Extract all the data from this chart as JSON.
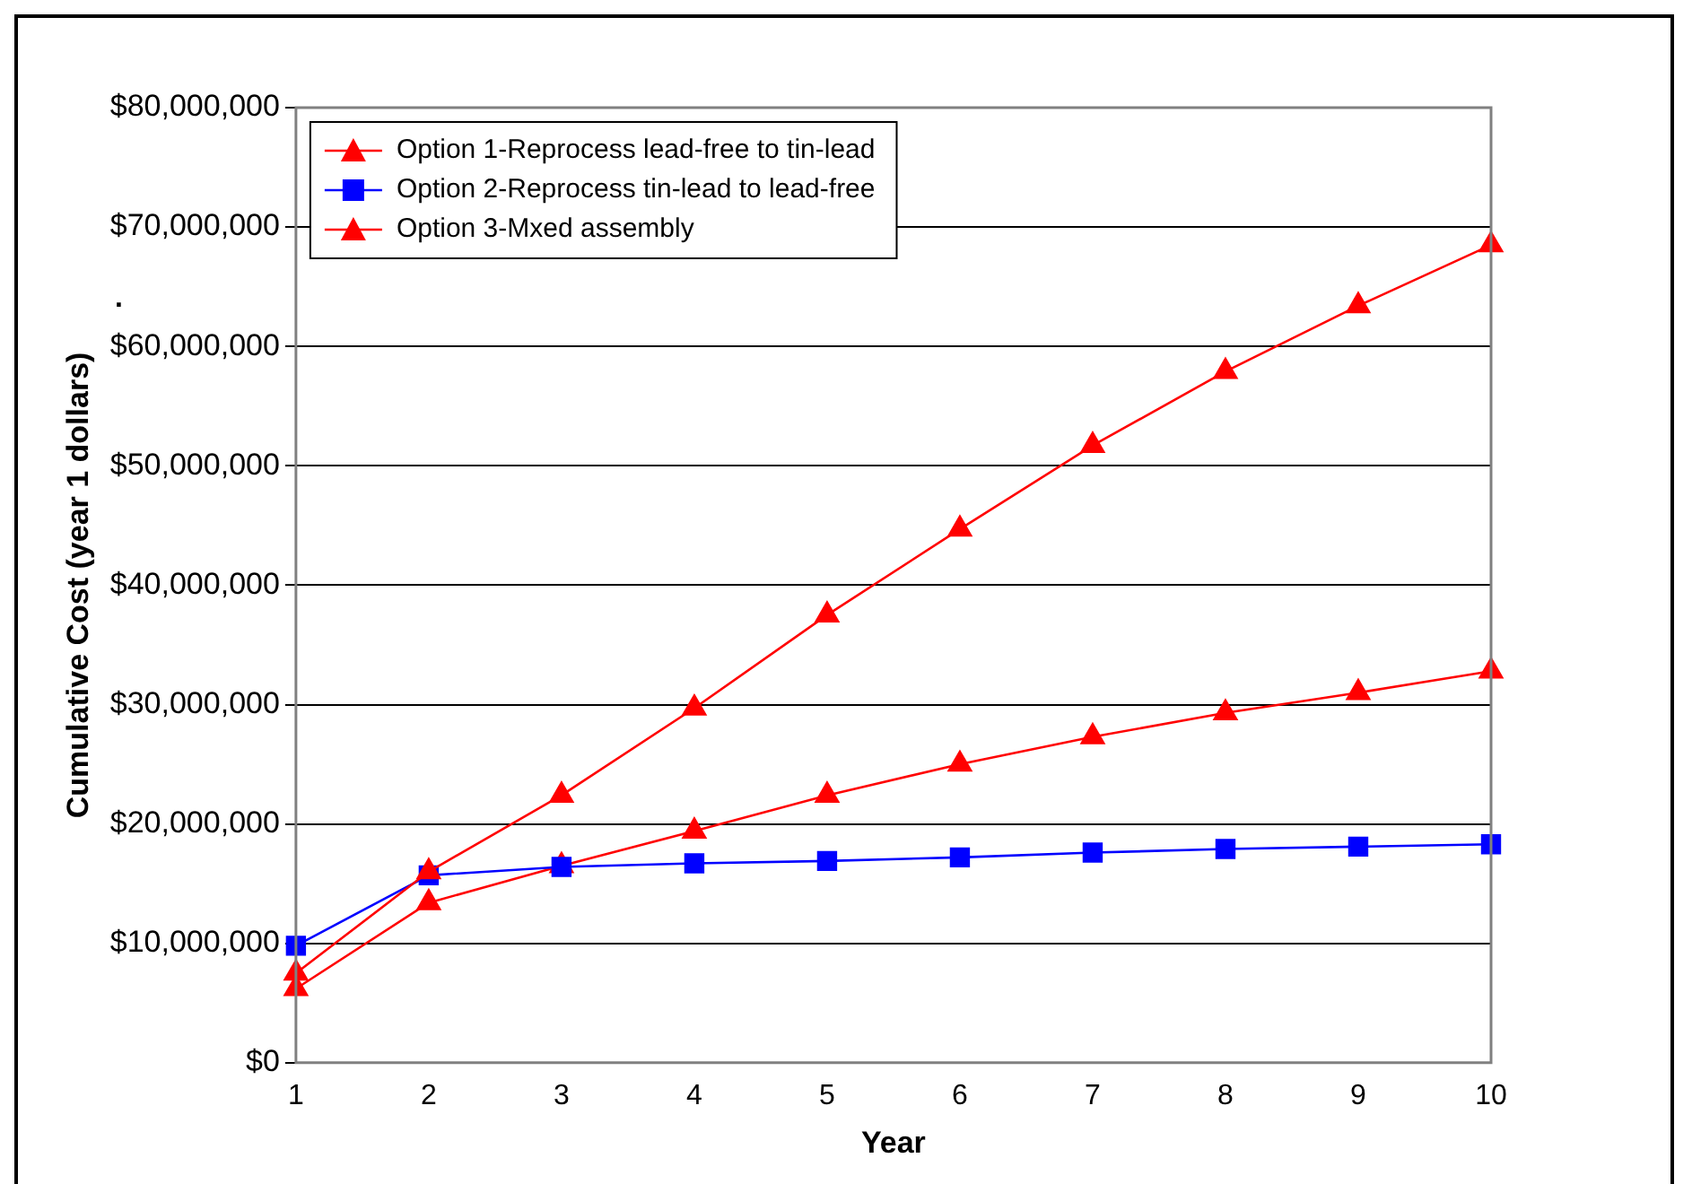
{
  "chart_data": {
    "type": "line",
    "xlabel": "Year",
    "ylabel": "Cumulative Cost (year 1 dollars)",
    "x": [
      1,
      2,
      3,
      4,
      5,
      6,
      7,
      8,
      9,
      10
    ],
    "xlim": [
      1,
      10
    ],
    "xticks": [
      1,
      2,
      3,
      4,
      5,
      6,
      7,
      8,
      9,
      10
    ],
    "ylim": [
      0,
      80000000
    ],
    "yticks": [
      {
        "value": 0,
        "label": "$0"
      },
      {
        "value": 10000000,
        "label": "$10,000,000"
      },
      {
        "value": 20000000,
        "label": "$20,000,000"
      },
      {
        "value": 30000000,
        "label": "$30,000,000"
      },
      {
        "value": 40000000,
        "label": "$40,000,000"
      },
      {
        "value": 50000000,
        "label": "$50,000,000"
      },
      {
        "value": 60000000,
        "label": "$60,000,000"
      },
      {
        "value": 70000000,
        "label": "$70,000,000"
      },
      {
        "value": 80000000,
        "label": "$80,000,000"
      }
    ],
    "grid": "y",
    "legend": "top left",
    "series": [
      {
        "name": "Option 1-Reprocess lead-free to tin-lead",
        "color": "#ff0000",
        "marker": "triangle",
        "values": [
          7500000,
          16000000,
          22400000,
          29700000,
          37500000,
          44700000,
          51700000,
          57900000,
          63400000,
          68500000
        ]
      },
      {
        "name": "Option 2-Reprocess tin-lead to lead-free",
        "color": "#0000ff",
        "marker": "square",
        "values": [
          9800000,
          15700000,
          16400000,
          16700000,
          16900000,
          17200000,
          17600000,
          17900000,
          18100000,
          18300000
        ]
      },
      {
        "name": "Option 3-Mxed assembly",
        "color": "#ff0000",
        "marker": "triangle",
        "values": [
          6200000,
          13400000,
          16500000,
          19400000,
          22400000,
          25000000,
          27300000,
          29300000,
          31000000,
          32800000
        ]
      }
    ],
    "annotations": [
      "."
    ]
  }
}
